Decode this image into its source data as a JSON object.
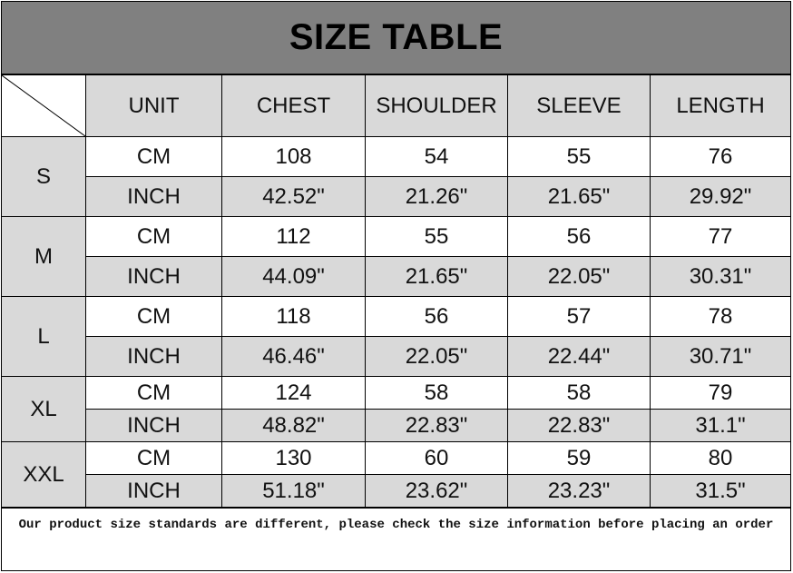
{
  "title": "SIZE TABLE",
  "headers": [
    "UNIT",
    "CHEST",
    "SHOULDER",
    "SLEEVE",
    "LENGTH"
  ],
  "sizes": [
    {
      "size": "S",
      "rows": [
        [
          "CM",
          "108",
          "54",
          "55",
          "76"
        ],
        [
          "INCH",
          "42.52\"",
          "21.26\"",
          "21.65\"",
          "29.92\""
        ]
      ]
    },
    {
      "size": "M",
      "rows": [
        [
          "CM",
          "112",
          "55",
          "56",
          "77"
        ],
        [
          "INCH",
          "44.09\"",
          "21.65\"",
          "22.05\"",
          "30.31\""
        ]
      ]
    },
    {
      "size": "L",
      "rows": [
        [
          "CM",
          "118",
          "56",
          "57",
          "78"
        ],
        [
          "INCH",
          "46.46\"",
          "22.05\"",
          "22.44\"",
          "30.71\""
        ]
      ]
    },
    {
      "size": "XL",
      "rows": [
        [
          "CM",
          "124",
          "58",
          "58",
          "79"
        ],
        [
          "INCH",
          "48.82\"",
          "22.83\"",
          "22.83\"",
          "31.1\""
        ]
      ]
    },
    {
      "size": "XXL",
      "rows": [
        [
          "CM",
          "130",
          "60",
          "59",
          "80"
        ],
        [
          "INCH",
          "51.18\"",
          "23.62\"",
          "23.23\"",
          "31.5\""
        ]
      ]
    }
  ],
  "footer": "Our product size standards are different, please check the size information before placing an order",
  "colors": {
    "title_bg": "#808080",
    "gray_cell": "#d9d9d9"
  }
}
